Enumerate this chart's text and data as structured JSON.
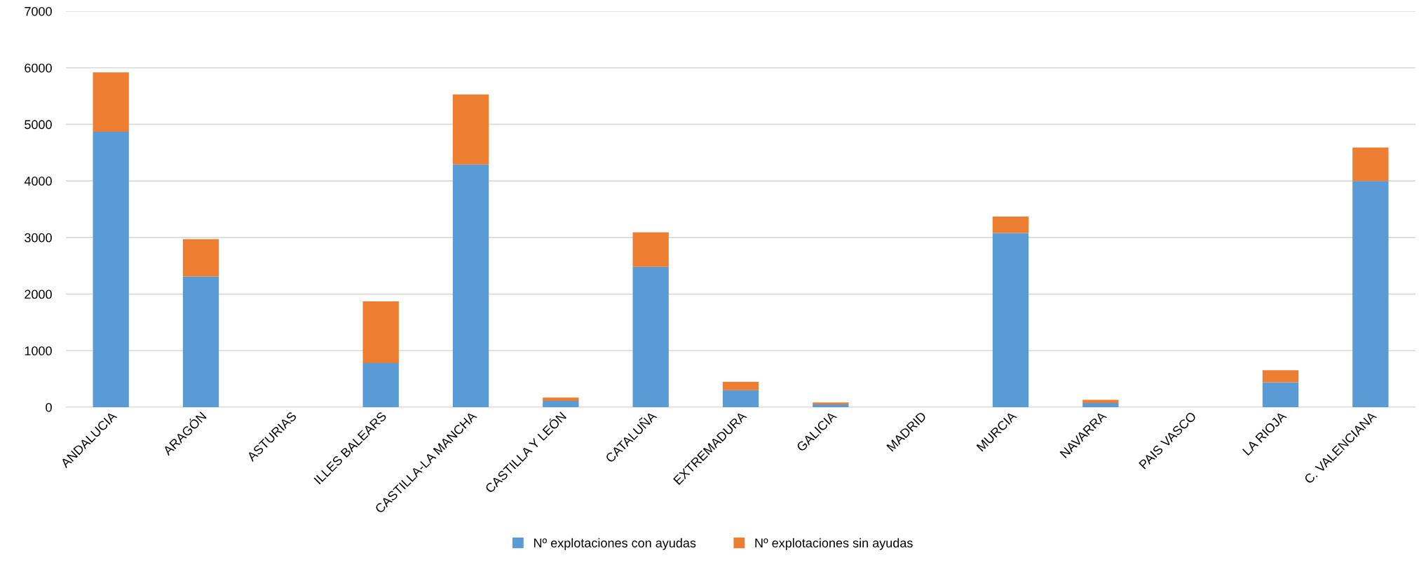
{
  "chart_data": {
    "type": "bar",
    "stacked": true,
    "categories": [
      "ANDALUCIA",
      "ARAGÓN",
      "ASTURIAS",
      "ILLES BALEARS",
      "CASTILLA-LA MANCHA",
      "CASTILLA Y LEÓN",
      "CATALUÑA",
      "EXTREMADURA",
      "GALICIA",
      "MADRID",
      "MURCIA",
      "NAVARRA",
      "PAIS VASCO",
      "LA RIOJA",
      "C. VALENCIANA"
    ],
    "series": [
      {
        "name": "Nº explotaciones con ayudas",
        "color": "#5b9bd5",
        "values": [
          4870,
          2310,
          0,
          780,
          4290,
          110,
          2480,
          300,
          50,
          0,
          3080,
          75,
          0,
          440,
          4000
        ]
      },
      {
        "name": "Nº explotaciones sin ayudas",
        "color": "#ed7d31",
        "values": [
          1050,
          660,
          0,
          1090,
          1240,
          60,
          610,
          150,
          35,
          0,
          290,
          55,
          0,
          215,
          590
        ]
      }
    ],
    "ylim": [
      0,
      7000
    ],
    "yticks": [
      0,
      1000,
      2000,
      3000,
      4000,
      5000,
      6000,
      7000
    ],
    "grid": "y",
    "legend": "bottom"
  }
}
